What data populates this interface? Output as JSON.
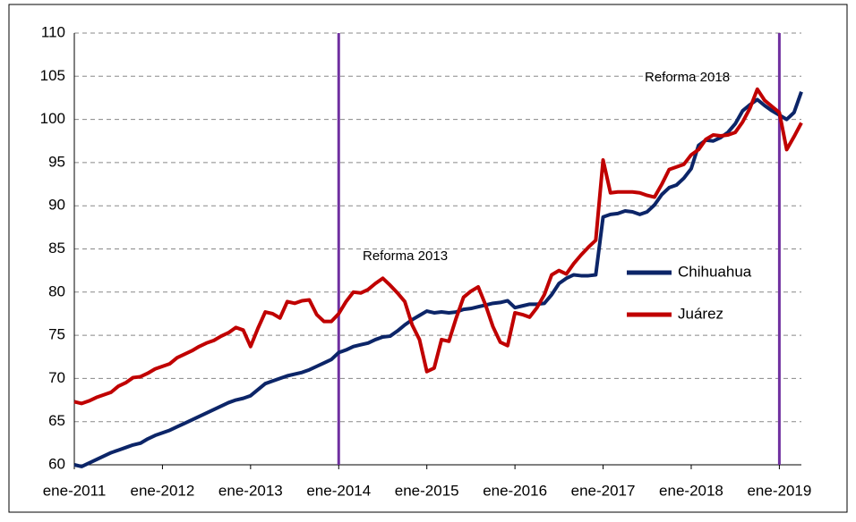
{
  "chart_data": {
    "type": "line",
    "categories": [
      "ene-2011",
      null,
      null,
      null,
      null,
      null,
      null,
      null,
      null,
      null,
      null,
      null,
      "ene-2012",
      null,
      null,
      null,
      null,
      null,
      null,
      null,
      null,
      null,
      null,
      null,
      "ene-2013",
      null,
      null,
      null,
      null,
      null,
      null,
      null,
      null,
      null,
      null,
      null,
      "ene-2014",
      null,
      null,
      null,
      null,
      null,
      null,
      null,
      null,
      null,
      null,
      null,
      "ene-2015",
      null,
      null,
      null,
      null,
      null,
      null,
      null,
      null,
      null,
      null,
      null,
      "ene-2016",
      null,
      null,
      null,
      null,
      null,
      null,
      null,
      null,
      null,
      null,
      null,
      "ene-2017",
      null,
      null,
      null,
      null,
      null,
      null,
      null,
      null,
      null,
      null,
      null,
      "ene-2018",
      null,
      null,
      null,
      null,
      null,
      null,
      null,
      null,
      null,
      null,
      null,
      "ene-2019",
      null,
      null,
      null
    ],
    "series": [
      {
        "name": "Chihuahua",
        "color": "#0c2568",
        "values": [
          60,
          59.8,
          60.2,
          60.6,
          61,
          61.4,
          61.7,
          62,
          62.3,
          62.5,
          63,
          63.4,
          63.7,
          64,
          64.4,
          64.8,
          65.2,
          65.6,
          66,
          66.4,
          66.8,
          67.2,
          67.5,
          67.7,
          68,
          68.7,
          69.4,
          69.7,
          70,
          70.3,
          70.5,
          70.7,
          71,
          71.4,
          71.8,
          72.2,
          73,
          73.3,
          73.7,
          73.9,
          74.1,
          74.5,
          74.8,
          74.9,
          75.5,
          76.2,
          76.8,
          77.3,
          77.8,
          77.6,
          77.7,
          77.6,
          77.7,
          78,
          78.1,
          78.3,
          78.5,
          78.7,
          78.8,
          79,
          78.2,
          78.4,
          78.6,
          78.6,
          78.7,
          79.7,
          81,
          81.6,
          82,
          81.9,
          81.9,
          82,
          88.7,
          89,
          89.1,
          89.4,
          89.3,
          89,
          89.3,
          90.1,
          91.3,
          92.1,
          92.4,
          93.2,
          94.3,
          97,
          97.6,
          97.5,
          97.9,
          98.5,
          99.5,
          101,
          101.7,
          102.3,
          101.6,
          101,
          100.5,
          100,
          100.8,
          103.2
        ]
      },
      {
        "name": "Juárez",
        "color": "#c00000",
        "values": [
          67.3,
          67.1,
          67.4,
          67.8,
          68.1,
          68.4,
          69.1,
          69.5,
          70.1,
          70.2,
          70.6,
          71.1,
          71.4,
          71.7,
          72.4,
          72.8,
          73.2,
          73.7,
          74.1,
          74.4,
          74.9,
          75.3,
          75.9,
          75.6,
          73.7,
          75.8,
          77.7,
          77.5,
          77,
          78.9,
          78.7,
          79,
          79.1,
          77.4,
          76.6,
          76.6,
          77.5,
          78.9,
          80,
          79.9,
          80.3,
          81,
          81.6,
          80.8,
          79.9,
          78.9,
          76.2,
          74.5,
          70.8,
          71.2,
          74.5,
          74.3,
          77,
          79.4,
          80.1,
          80.6,
          78.5,
          76,
          74.2,
          73.8,
          77.6,
          77.4,
          77.1,
          78.2,
          79.7,
          82,
          82.5,
          82.1,
          83.3,
          84.3,
          85.2,
          86,
          95.3,
          91.5,
          91.6,
          91.6,
          91.6,
          91.5,
          91.2,
          91,
          92.5,
          94.2,
          94.5,
          94.8,
          95.9,
          96.5,
          97.7,
          98.2,
          98.1,
          98.2,
          98.5,
          99.7,
          101.3,
          103.5,
          102.2,
          101.5,
          100.8,
          96.5,
          98,
          99.6
        ]
      }
    ],
    "ylim": [
      60,
      110
    ],
    "yticks": [
      60,
      65,
      70,
      75,
      80,
      85,
      90,
      95,
      100,
      105,
      110
    ],
    "grid": true,
    "vlines": [
      {
        "at": "ene-2014",
        "label": "Reforma 2013"
      },
      {
        "at": "ene-2019",
        "label": "Reforma 2018"
      }
    ]
  }
}
